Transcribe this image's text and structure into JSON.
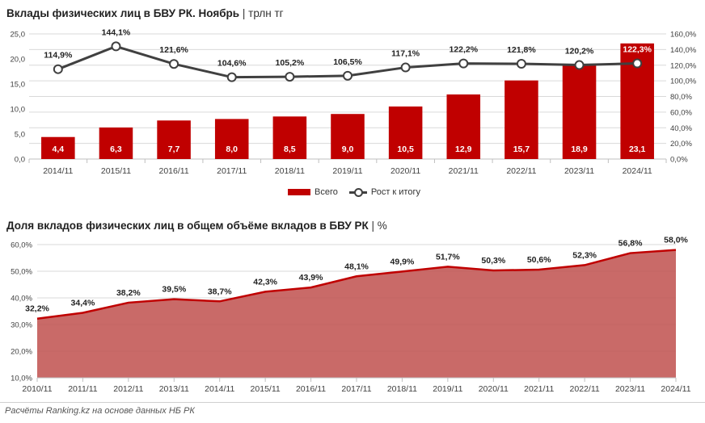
{
  "chart_data": [
    {
      "type": "bar",
      "title": "Вклады физических лиц в БВУ РК. Ноябрь",
      "unit": "трлн тг",
      "categories": [
        "2014/11",
        "2015/11",
        "2016/11",
        "2017/11",
        "2018/11",
        "2019/11",
        "2020/11",
        "2021/11",
        "2022/11",
        "2023/11",
        "2024/11"
      ],
      "series": [
        {
          "name": "Всего",
          "type": "bar",
          "axis": "left",
          "values": [
            4.4,
            6.3,
            7.7,
            8.0,
            8.5,
            9.0,
            10.5,
            12.9,
            15.7,
            18.9,
            23.1
          ],
          "labels": [
            "4,4",
            "6,3",
            "7,7",
            "8,0",
            "8,5",
            "9,0",
            "10,5",
            "12,9",
            "15,7",
            "18,9",
            "23,1"
          ]
        },
        {
          "name": "Рост к итогу",
          "type": "line",
          "axis": "right",
          "values": [
            114.9,
            144.1,
            121.6,
            104.6,
            105.2,
            106.5,
            117.1,
            122.2,
            121.8,
            120.2,
            122.3
          ],
          "labels": [
            "114,9%",
            "144,1%",
            "121,6%",
            "104,6%",
            "105,2%",
            "106,5%",
            "117,1%",
            "122,2%",
            "121,8%",
            "120,2%",
            "122,3%"
          ]
        }
      ],
      "ylim": [
        0,
        25
      ],
      "y_ticks": [
        0,
        5,
        10,
        15,
        20,
        25
      ],
      "y_tick_labels": [
        "0,0",
        "5,0",
        "10,0",
        "15,0",
        "20,0",
        "25,0"
      ],
      "y2lim": [
        0,
        160
      ],
      "y2_ticks": [
        0,
        20,
        40,
        60,
        80,
        100,
        120,
        140,
        160
      ],
      "y2_tick_labels": [
        "0,0%",
        "20,0%",
        "40,0%",
        "60,0%",
        "80,0%",
        "100,0%",
        "120,0%",
        "140,0%",
        "160,0%"
      ],
      "grid": true,
      "legend_position": "bottom",
      "colors": {
        "bar": "#c00000",
        "line": "#404040"
      }
    },
    {
      "type": "area",
      "title": "Доля вкладов физических лиц в общем объёме вкладов в БВУ РК",
      "unit": "%",
      "categories": [
        "2010/11",
        "2011/11",
        "2012/11",
        "2013/11",
        "2014/11",
        "2015/11",
        "2016/11",
        "2017/11",
        "2018/11",
        "2019/11",
        "2020/11",
        "2021/11",
        "2022/11",
        "2023/11",
        "2024/11"
      ],
      "values": [
        32.2,
        34.4,
        38.2,
        39.5,
        38.7,
        42.3,
        43.9,
        48.1,
        49.9,
        51.7,
        50.3,
        50.6,
        52.3,
        56.8,
        58.0
      ],
      "labels": [
        "32,2%",
        "34,4%",
        "38,2%",
        "39,5%",
        "38,7%",
        "42,3%",
        "43,9%",
        "48,1%",
        "49,9%",
        "51,7%",
        "50,3%",
        "50,6%",
        "52,3%",
        "56,8%",
        "58,0%"
      ],
      "ylim": [
        10,
        60
      ],
      "y_ticks": [
        10,
        20,
        30,
        40,
        50,
        60
      ],
      "y_tick_labels": [
        "10,0%",
        "20,0%",
        "30,0%",
        "40,0%",
        "50,0%",
        "60,0%"
      ],
      "grid": true,
      "colors": {
        "fill": "#c0504d",
        "line": "#c00000"
      }
    }
  ],
  "source": "Расчёты Ranking.kz на основе данных НБ РК"
}
